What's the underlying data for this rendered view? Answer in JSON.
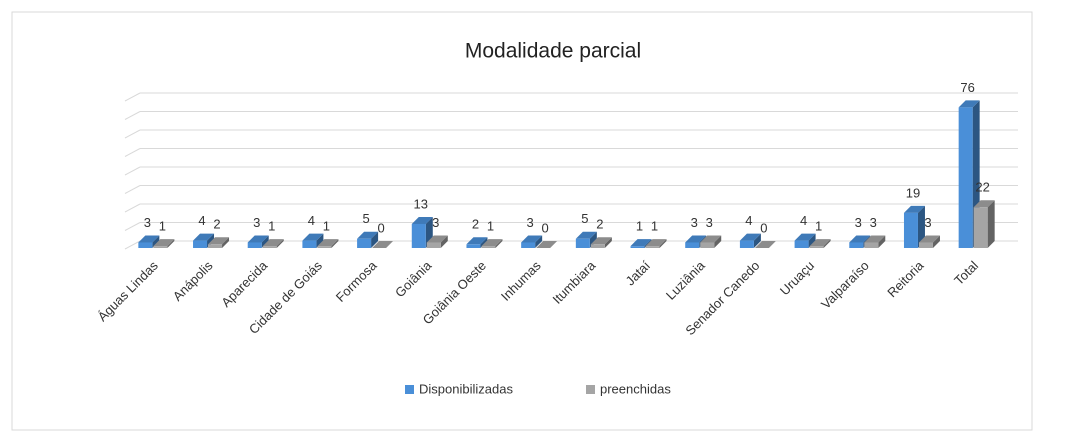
{
  "chart_data": {
    "type": "bar3d",
    "title": "Modalidade parcial",
    "categories": [
      "Águas Lindas",
      "Anápolis",
      "Aparecida",
      "Cidade de Goiás",
      "Formosa",
      "Goiânia",
      "Goiânia Oeste",
      "Inhumas",
      "Itumbiara",
      "Jataí",
      "Luziânia",
      "Senador Canedo",
      "Uruaçu",
      "Valparaíso",
      "Reitoria",
      "Total"
    ],
    "series": [
      {
        "name": "Disponibilizadas",
        "color": "#4a8fd8",
        "values": [
          3,
          4,
          3,
          4,
          5,
          13,
          2,
          3,
          5,
          1,
          3,
          4,
          4,
          3,
          19,
          76
        ]
      },
      {
        "name": "preenchidas",
        "color": "#a5a5a5",
        "values": [
          1,
          2,
          1,
          1,
          0,
          3,
          1,
          0,
          2,
          1,
          3,
          0,
          1,
          3,
          3,
          22
        ]
      }
    ],
    "ylim": [
      0,
      80
    ],
    "yticks": [
      0,
      10,
      20,
      30,
      40,
      50,
      60,
      70,
      80
    ],
    "grid": true,
    "legend": "bottom"
  }
}
